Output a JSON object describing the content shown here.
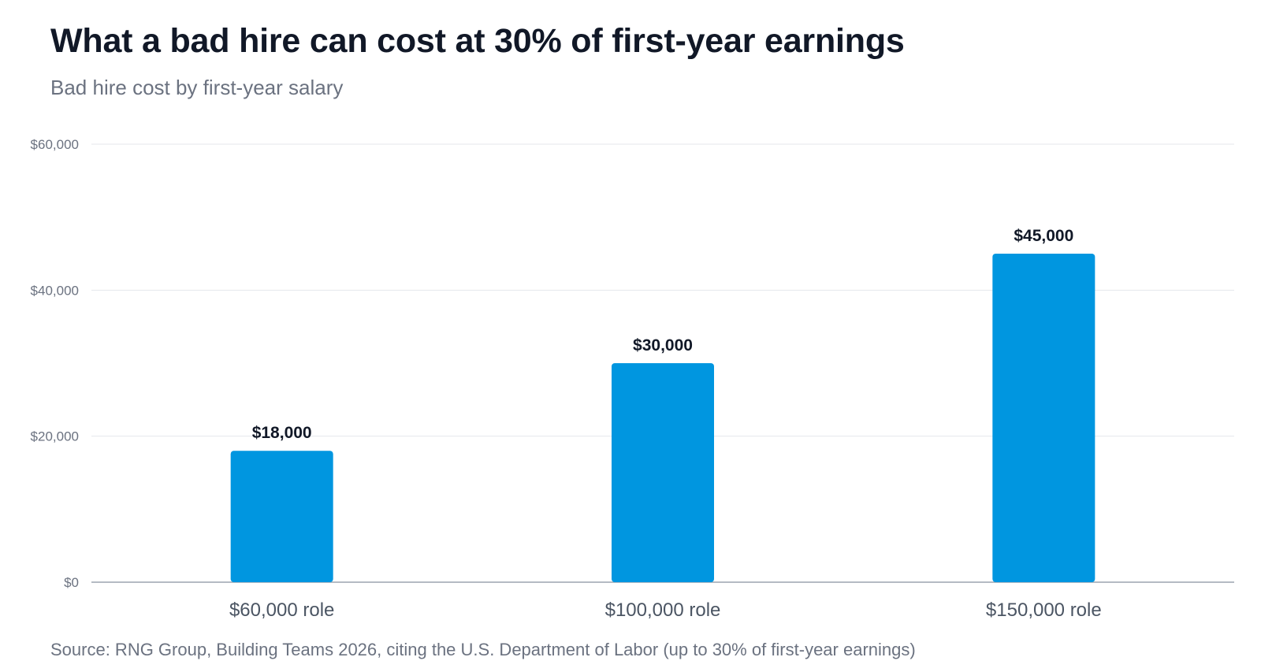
{
  "chart_data": {
    "type": "bar",
    "title": "What a bad hire can cost at 30% of first-year earnings",
    "subtitle": "Bad hire cost by first-year salary",
    "categories": [
      "$60,000 role",
      "$100,000 role",
      "$150,000 role"
    ],
    "values": [
      18000,
      30000,
      45000
    ],
    "value_labels": [
      "$18,000",
      "$30,000",
      "$45,000"
    ],
    "xlabel": "",
    "ylabel": "",
    "ylim": [
      0,
      60000
    ],
    "yticks": [
      0,
      20000,
      40000,
      60000
    ],
    "ytick_labels": [
      "$0",
      "$20,000",
      "$40,000",
      "$60,000"
    ],
    "grid": true,
    "legend": "none",
    "bar_color": "#0096E0",
    "source": "Source: RNG Group, Building Teams 2026, citing the U.S. Department of Labor (up to 30% of first-year earnings)"
  }
}
